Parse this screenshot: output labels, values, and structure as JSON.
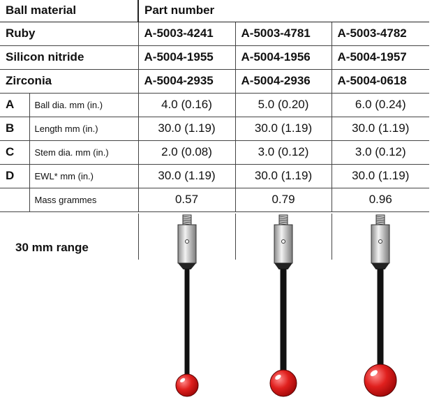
{
  "header": {
    "ball_material": "Ball material",
    "part_number": "Part number"
  },
  "materials": [
    {
      "name": "Ruby",
      "parts": [
        "A-5003-4241",
        "A-5003-4781",
        "A-5003-4782"
      ]
    },
    {
      "name": "Silicon nitride",
      "parts": [
        "A-5004-1955",
        "A-5004-1956",
        "A-5004-1957"
      ]
    },
    {
      "name": "Zirconia",
      "parts": [
        "A-5004-2935",
        "A-5004-2936",
        "A-5004-0618"
      ]
    }
  ],
  "specs": [
    {
      "letter": "A",
      "label": "Ball dia. mm (in.)",
      "values": [
        "4.0 (0.16)",
        "5.0 (0.20)",
        "6.0 (0.24)"
      ]
    },
    {
      "letter": "B",
      "label": "Length mm (in.)",
      "values": [
        "30.0 (1.19)",
        "30.0 (1.19)",
        "30.0 (1.19)"
      ]
    },
    {
      "letter": "C",
      "label": "Stem dia. mm (in.)",
      "values": [
        "2.0 (0.08)",
        "3.0 (0.12)",
        "3.0 (0.12)"
      ]
    },
    {
      "letter": "D",
      "label": "EWL* mm (in.)",
      "values": [
        "30.0 (1.19)",
        "30.0 (1.19)",
        "30.0 (1.19)"
      ]
    },
    {
      "label": "Mass grammes",
      "values": [
        "0.57",
        "0.79",
        "0.96"
      ]
    }
  ],
  "range_label": "30 mm range"
}
